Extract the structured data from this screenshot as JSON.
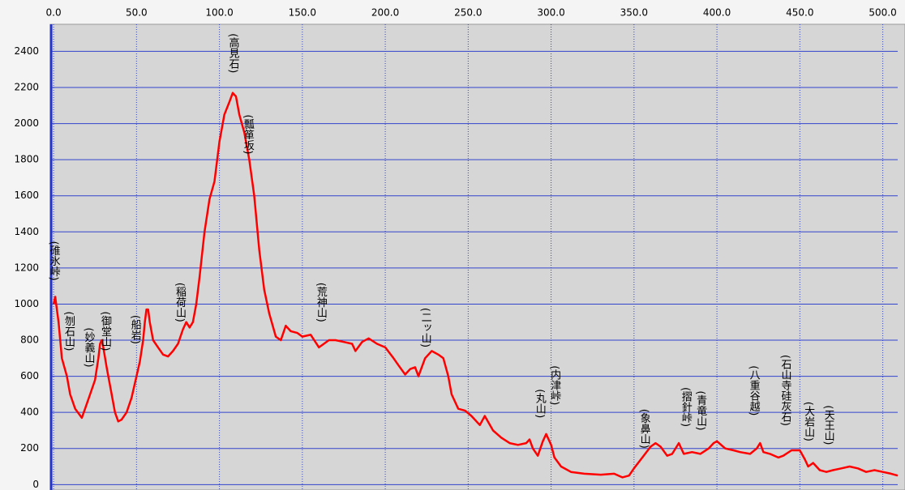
{
  "chart_data": {
    "type": "line",
    "color": "#ff0000",
    "grid": true,
    "xlim": [
      -2,
      509
    ],
    "ylim": [
      -30,
      2550
    ],
    "xticks": [
      {
        "value": 0,
        "label": "0.0"
      },
      {
        "value": 50,
        "label": "50.0"
      },
      {
        "value": 100,
        "label": "100.0"
      },
      {
        "value": 150,
        "label": "150.0"
      },
      {
        "value": 200,
        "label": "200.0"
      },
      {
        "value": 250,
        "label": "250.0"
      },
      {
        "value": 300,
        "label": "300.0"
      },
      {
        "value": 350,
        "label": "350.0"
      },
      {
        "value": 400,
        "label": "400.0"
      },
      {
        "value": 450,
        "label": "450.0"
      },
      {
        "value": 500,
        "label": "500.0"
      }
    ],
    "yticks": [
      0,
      200,
      400,
      600,
      800,
      1000,
      1200,
      1400,
      1600,
      1800,
      2000,
      2200,
      2400
    ],
    "x": [
      0,
      1,
      3,
      5,
      8,
      10,
      13,
      17,
      19,
      22,
      25,
      27,
      28,
      29,
      30,
      32,
      35,
      37,
      39,
      41,
      44,
      47,
      50,
      52,
      54,
      55,
      56,
      57,
      58,
      60,
      63,
      66,
      69,
      72,
      75,
      78,
      80,
      82,
      84,
      86,
      88,
      91,
      94,
      97,
      100,
      103,
      106,
      108,
      110,
      112,
      115,
      118,
      121,
      124,
      127,
      130,
      134,
      137,
      140,
      143,
      147,
      150,
      155,
      160,
      163,
      166,
      170,
      175,
      180,
      182,
      186,
      190,
      195,
      200,
      205,
      208,
      212,
      215,
      218,
      220,
      224,
      228,
      232,
      235,
      238,
      240,
      244,
      248,
      252,
      257,
      260,
      265,
      270,
      275,
      280,
      285,
      287,
      289,
      292,
      295,
      297,
      300,
      302,
      306,
      312,
      320,
      330,
      338,
      343,
      347,
      350,
      355,
      360,
      363,
      366,
      370,
      373,
      377,
      380,
      385,
      390,
      395,
      398,
      400,
      405,
      410,
      414,
      420,
      424,
      426,
      428,
      432,
      437,
      440,
      445,
      450,
      453,
      455,
      458,
      462,
      466,
      470,
      475,
      480,
      485,
      490,
      495,
      500,
      505,
      509
    ],
    "values": [
      1000,
      1040,
      900,
      700,
      600,
      500,
      420,
      370,
      420,
      500,
      580,
      700,
      780,
      800,
      760,
      650,
      500,
      400,
      350,
      360,
      400,
      480,
      600,
      680,
      800,
      900,
      970,
      970,
      900,
      800,
      760,
      720,
      710,
      740,
      780,
      860,
      900,
      870,
      900,
      1000,
      1150,
      1400,
      1580,
      1680,
      1900,
      2050,
      2120,
      2170,
      2150,
      2050,
      1950,
      1800,
      1600,
      1300,
      1080,
      950,
      820,
      800,
      880,
      850,
      840,
      820,
      830,
      760,
      780,
      800,
      800,
      790,
      780,
      740,
      790,
      810,
      780,
      760,
      700,
      660,
      610,
      640,
      650,
      600,
      700,
      740,
      720,
      700,
      600,
      500,
      420,
      410,
      380,
      330,
      380,
      300,
      260,
      230,
      220,
      230,
      250,
      200,
      160,
      240,
      280,
      220,
      150,
      100,
      70,
      60,
      55,
      60,
      40,
      50,
      90,
      150,
      210,
      230,
      210,
      160,
      170,
      230,
      170,
      180,
      170,
      200,
      230,
      240,
      200,
      190,
      180,
      170,
      200,
      230,
      180,
      170,
      150,
      160,
      190,
      190,
      140,
      100,
      120,
      80,
      70,
      80,
      90,
      100,
      90,
      70,
      80,
      70,
      60,
      50
    ],
    "annotations": [
      {
        "text": "(碓氷峠)",
        "x": 0,
        "y": 1350
      },
      {
        "text": "(刎石山)",
        "x": 9,
        "y": 960
      },
      {
        "text": "(妙義山)",
        "x": 21,
        "y": 870
      },
      {
        "text": "(御堂山)",
        "x": 31,
        "y": 960
      },
      {
        "text": "(船岩)",
        "x": 49,
        "y": 940
      },
      {
        "text": "(稲荷山)",
        "x": 76,
        "y": 1120
      },
      {
        "text": "(高見石)",
        "x": 108,
        "y": 2500
      },
      {
        "text": "(瓢箪坂)",
        "x": 117,
        "y": 2050
      },
      {
        "text": "(荒神山)",
        "x": 161,
        "y": 1120
      },
      {
        "text": "(二ッ山)",
        "x": 224,
        "y": 980
      },
      {
        "text": "(丸山)",
        "x": 293,
        "y": 530
      },
      {
        "text": "(内津峠)",
        "x": 302,
        "y": 660
      },
      {
        "text": "(象鼻山)",
        "x": 356,
        "y": 420
      },
      {
        "text": "(摺針峠)",
        "x": 381,
        "y": 540
      },
      {
        "text": "(青竜山)",
        "x": 390,
        "y": 520
      },
      {
        "text": "(八重谷越)",
        "x": 422,
        "y": 660
      },
      {
        "text": "(石山寺硅灰石)",
        "x": 441,
        "y": 720
      },
      {
        "text": "(大岩山)",
        "x": 455,
        "y": 460
      },
      {
        "text": "(天王山)",
        "x": 467,
        "y": 440
      }
    ]
  }
}
